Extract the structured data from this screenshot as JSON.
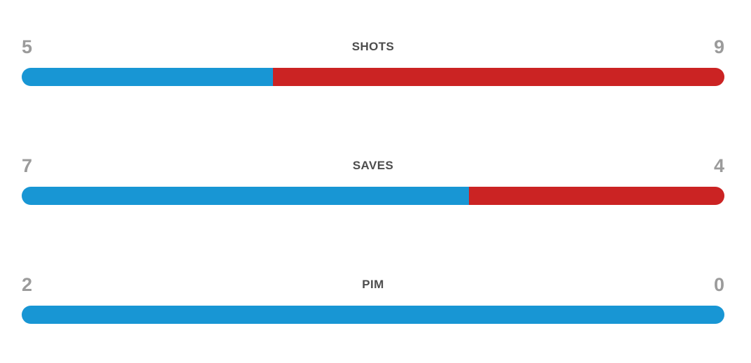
{
  "colors": {
    "home": "#1896D4",
    "away": "#CB2323",
    "value_text": "#9B9B9B",
    "label_text": "#4D4D4D",
    "background": "#FFFFFF"
  },
  "stats": [
    {
      "label": "SHOTS",
      "home_value": "5",
      "away_value": "9",
      "home_width": "35.714%"
    },
    {
      "label": "SAVES",
      "home_value": "7",
      "away_value": "4",
      "home_width": "63.636%"
    },
    {
      "label": "PIM",
      "home_value": "2",
      "away_value": "0",
      "home_width": "100%"
    }
  ],
  "chart_data": {
    "type": "bar",
    "subtype": "head-to-head stacked proportion bars",
    "categories": [
      "SHOTS",
      "SAVES",
      "PIM"
    ],
    "series": [
      {
        "name": "home (left, blue)",
        "color": "#1896D4",
        "values": [
          5,
          7,
          2
        ]
      },
      {
        "name": "away (right, red)",
        "color": "#CB2323",
        "values": [
          9,
          4,
          0
        ]
      }
    ],
    "title": "",
    "xlabel": "",
    "ylabel": "",
    "legend_position": "none",
    "grid": false,
    "layout": "horizontal full-width bars; each bar split by home/(home+away); left numeric value, centered category label, right numeric value above each bar"
  }
}
